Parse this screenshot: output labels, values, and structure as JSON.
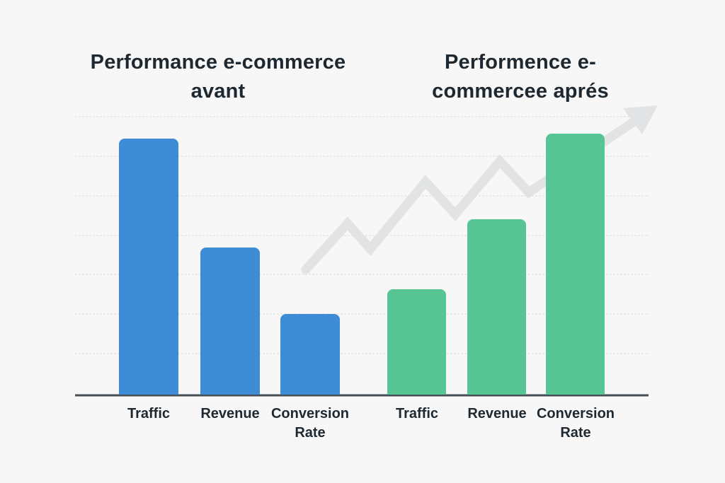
{
  "page": {
    "background": "#f7f7f7"
  },
  "titles": {
    "before": {
      "line1": "Performance e-commerce",
      "line2": "avant"
    },
    "after": {
      "line1": "Performence e-",
      "line2": "commercee aprés"
    }
  },
  "colors": {
    "before_bar": "#3e8bd6",
    "after_bar": "#57c493",
    "grid": "#e9e9e9",
    "axis": "#474f56",
    "arrow": "#e2e3e5",
    "text": "#1e2830"
  },
  "icons": {
    "trend_arrow": "upward-zigzag-trend-arrow"
  },
  "chart_data": [
    {
      "type": "bar",
      "title": "Performance e-commerce avant",
      "categories": [
        "Traffic",
        "Revenue",
        "Conversion Rate"
      ],
      "values": [
        92,
        53,
        29
      ],
      "bar_color": "#3e8bd6",
      "xlabel": "",
      "ylabel": "",
      "ylim": [
        0,
        100
      ],
      "value_scale": "relative bar height %, no numeric axis labels shown",
      "grid": true,
      "legend": "none"
    },
    {
      "type": "bar",
      "title": "Performence e-commercee aprés",
      "categories": [
        "Traffic",
        "Revenue",
        "Conversion Rate"
      ],
      "values": [
        38,
        63,
        94
      ],
      "bar_color": "#57c493",
      "xlabel": "",
      "ylabel": "",
      "ylim": [
        0,
        100
      ],
      "value_scale": "relative bar height %, no numeric axis labels shown",
      "grid": true,
      "legend": "none"
    }
  ]
}
